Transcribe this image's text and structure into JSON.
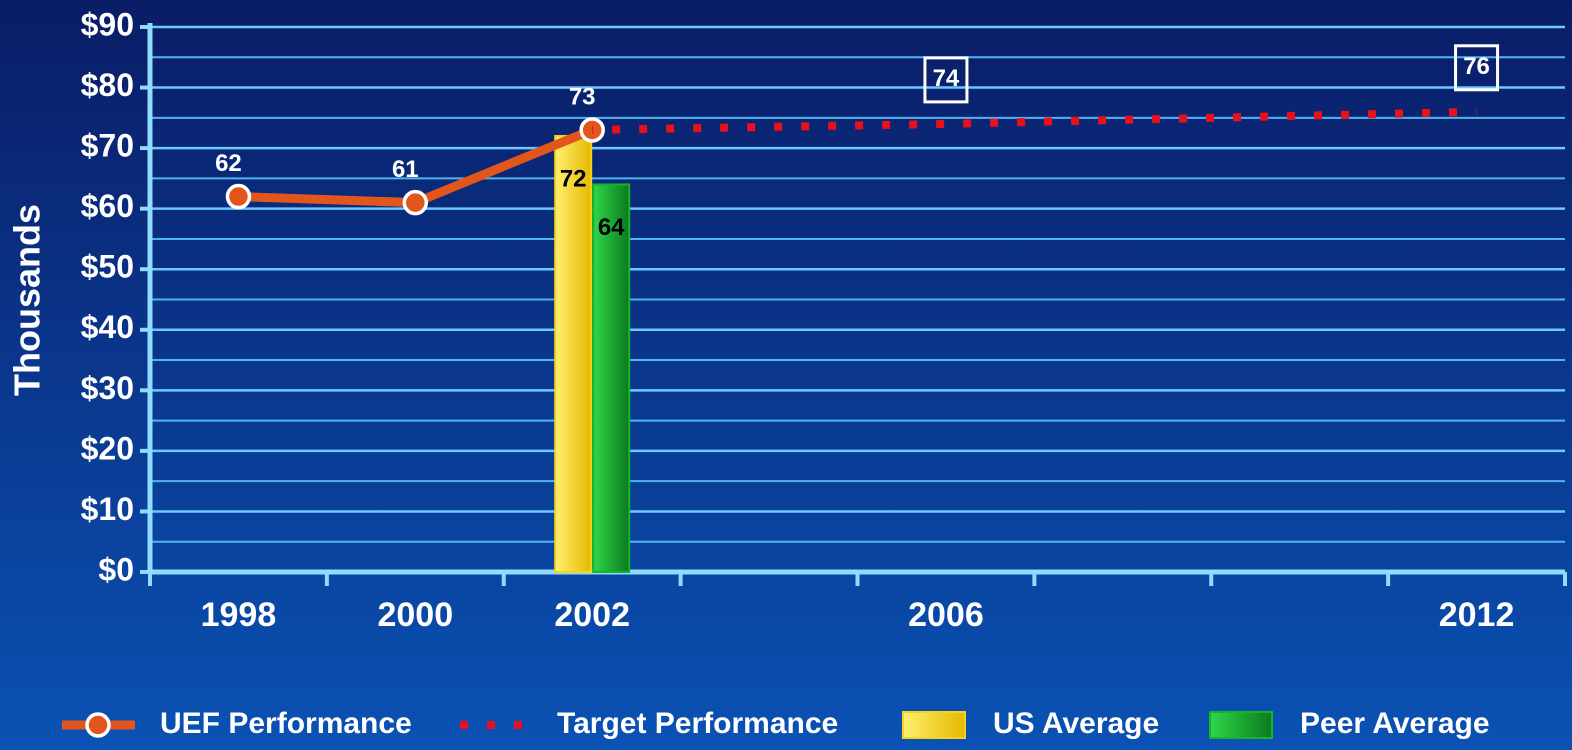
{
  "chart_data": {
    "type": "line",
    "ylabel": "Thousands",
    "xlim": [
      1997,
      2013
    ],
    "xticks": [
      1998,
      2000,
      2002,
      2006,
      2012
    ],
    "x_minor_ticks": [
      1997,
      1999,
      2001,
      2003,
      2005,
      2007,
      2009,
      2011,
      2013
    ],
    "ylim": [
      0,
      90
    ],
    "yticks": [
      {
        "value": 0,
        "label": "$0"
      },
      {
        "value": 10,
        "label": "$10"
      },
      {
        "value": 20,
        "label": "$20"
      },
      {
        "value": 30,
        "label": "$30"
      },
      {
        "value": 40,
        "label": "$40"
      },
      {
        "value": 50,
        "label": "$50"
      },
      {
        "value": 60,
        "label": "$60"
      },
      {
        "value": 70,
        "label": "$70"
      },
      {
        "value": 80,
        "label": "$80"
      },
      {
        "value": 90,
        "label": "$90"
      }
    ],
    "y_minor_ticks": [
      5,
      15,
      25,
      35,
      45,
      55,
      65,
      75,
      85
    ],
    "grid": true,
    "legend": "bottom",
    "series": [
      {
        "name": "UEF Performance",
        "type": "line",
        "color": "#e2561c",
        "x": [
          1998,
          2000,
          2002
        ],
        "values": [
          62,
          61,
          73
        ]
      },
      {
        "name": "Target Performance",
        "type": "dotted",
        "color": "#e8101a",
        "x": [
          2002,
          2006,
          2012
        ],
        "values": [
          73,
          74,
          76
        ],
        "value_labels": [
          null,
          "74",
          "76"
        ]
      },
      {
        "name": "US Average",
        "type": "bar",
        "color": "#f6d21a",
        "x": [
          2002
        ],
        "values": [
          72
        ]
      },
      {
        "name": "Peer Average",
        "type": "bar",
        "color": "#14b52a",
        "x": [
          2002
        ],
        "values": [
          64
        ]
      }
    ]
  }
}
